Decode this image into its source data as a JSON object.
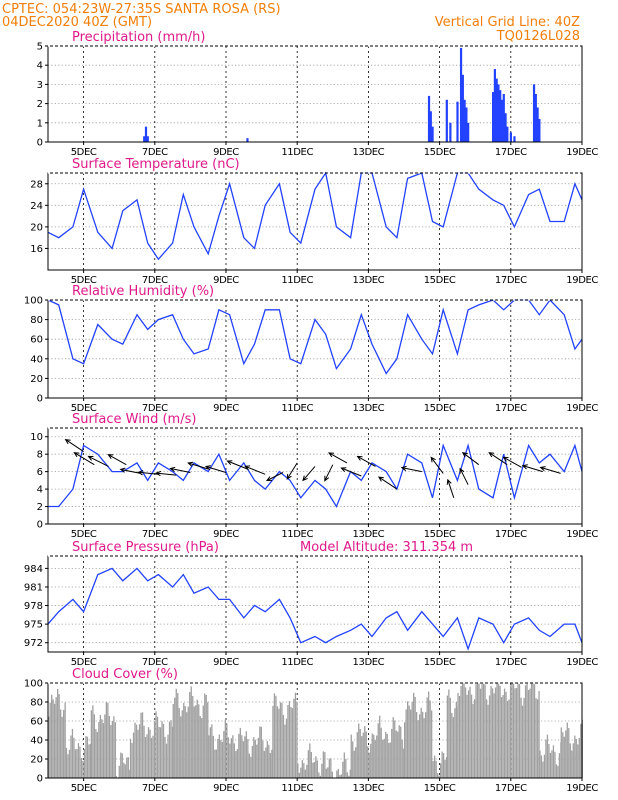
{
  "header": {
    "left_line1": "CPTEC:   054:23W-27:35S   SANTA ROSA (RS)",
    "left_line2": "04DEC2020 40Z (GMT)",
    "right_line1": "Vertical Grid Line: 40Z",
    "right_line2": "TQ0126L028"
  },
  "x_tick_labels": [
    "5DEC",
    "7DEC",
    "9DEC",
    "11DEC",
    "13DEC",
    "15DEC",
    "17DEC",
    "19DEC"
  ],
  "colors": {
    "header": "#f07f0a",
    "panel_title": "#e0198a",
    "line": "#2242ff",
    "cloud": "#a0a0a0"
  },
  "panels": {
    "precip": {
      "title": "Precipitation (mm/h)",
      "yticks": [
        "0",
        "1",
        "2",
        "3",
        "4",
        "5"
      ]
    },
    "temp": {
      "title": "Surface Temperature (nC)",
      "yticks": [
        "16",
        "20",
        "24",
        "28"
      ]
    },
    "rh": {
      "title": "Relative Humidity (%)",
      "yticks": [
        "0",
        "20",
        "40",
        "60",
        "80",
        "100"
      ]
    },
    "wind": {
      "title": "Surface Wind (m/s)",
      "yticks": [
        "0",
        "2",
        "4",
        "6",
        "8",
        "10"
      ]
    },
    "pres": {
      "title": "Surface Pressure (hPa)",
      "subtitle": "Model Altitude: 311.354 m",
      "yticks": [
        "972",
        "975",
        "978",
        "981",
        "984"
      ]
    },
    "cloud": {
      "title": "Cloud Cover (%)",
      "yticks": [
        "0",
        "20",
        "40",
        "60",
        "80",
        "100"
      ]
    }
  },
  "chart_data": [
    {
      "type": "bar",
      "title": "Precipitation (mm/h)",
      "ylim": [
        0,
        5
      ],
      "x_range_days": [
        4.0,
        19.0
      ],
      "x": [
        6.7,
        6.75,
        6.8,
        9.6,
        14.7,
        14.75,
        14.8,
        15.2,
        15.3,
        15.5,
        15.6,
        15.65,
        15.7,
        15.75,
        15.8,
        16.5,
        16.55,
        16.6,
        16.65,
        16.7,
        16.75,
        16.8,
        16.85,
        16.9,
        17.0,
        17.1,
        17.65,
        17.7,
        17.75,
        17.8
      ],
      "values": [
        0.3,
        0.8,
        0.3,
        0.2,
        2.4,
        1.6,
        0.8,
        2.2,
        1.0,
        2.1,
        4.9,
        3.5,
        2.2,
        1.8,
        1.0,
        2.6,
        3.8,
        3.3,
        3.0,
        2.7,
        2.2,
        2.5,
        1.5,
        0.8,
        0.5,
        0.3,
        3.0,
        2.5,
        1.8,
        1.2
      ]
    },
    {
      "type": "line",
      "title": "Surface Temperature (nC)",
      "ylim": [
        12,
        30
      ],
      "x": [
        4.0,
        4.3,
        4.7,
        5.0,
        5.4,
        5.8,
        6.1,
        6.5,
        6.8,
        7.1,
        7.5,
        7.8,
        8.1,
        8.5,
        8.8,
        9.1,
        9.5,
        9.8,
        10.1,
        10.5,
        10.8,
        11.1,
        11.5,
        11.8,
        12.1,
        12.5,
        12.8,
        13.1,
        13.5,
        13.8,
        14.1,
        14.5,
        14.8,
        15.1,
        15.5,
        15.8,
        16.1,
        16.5,
        16.8,
        17.1,
        17.5,
        17.8,
        18.1,
        18.5,
        18.8,
        19.0
      ],
      "values": [
        19,
        18,
        20,
        27,
        19,
        16,
        23,
        25,
        17,
        14,
        17,
        26,
        20,
        15,
        22,
        28,
        18,
        16,
        24,
        28,
        19,
        17,
        27,
        30,
        20,
        18,
        30,
        30,
        20,
        18,
        29,
        30,
        21,
        20,
        30,
        30,
        27,
        25,
        24,
        20,
        26,
        27,
        21,
        21,
        28,
        25
      ]
    },
    {
      "type": "line",
      "title": "Relative Humidity (%)",
      "ylim": [
        0,
        100
      ],
      "x": [
        4.0,
        4.3,
        4.7,
        5.0,
        5.4,
        5.8,
        6.1,
        6.5,
        6.8,
        7.1,
        7.5,
        7.8,
        8.1,
        8.5,
        8.8,
        9.1,
        9.5,
        9.8,
        10.1,
        10.5,
        10.8,
        11.1,
        11.5,
        11.8,
        12.1,
        12.5,
        12.8,
        13.1,
        13.5,
        13.8,
        14.1,
        14.5,
        14.8,
        15.1,
        15.5,
        15.8,
        16.1,
        16.5,
        16.8,
        17.1,
        17.5,
        17.8,
        18.1,
        18.5,
        18.8,
        19.0
      ],
      "values": [
        100,
        95,
        40,
        35,
        75,
        60,
        55,
        85,
        70,
        80,
        85,
        60,
        45,
        50,
        90,
        85,
        35,
        55,
        90,
        90,
        40,
        35,
        80,
        65,
        30,
        50,
        85,
        55,
        25,
        40,
        85,
        60,
        45,
        90,
        45,
        90,
        95,
        100,
        90,
        100,
        100,
        85,
        100,
        85,
        50,
        60
      ]
    },
    {
      "type": "line",
      "title": "Surface Wind (m/s)",
      "ylim": [
        0,
        11
      ],
      "x": [
        4.0,
        4.3,
        4.7,
        5.0,
        5.4,
        5.8,
        6.1,
        6.5,
        6.8,
        7.1,
        7.5,
        7.8,
        8.1,
        8.5,
        8.8,
        9.1,
        9.5,
        9.8,
        10.1,
        10.5,
        10.8,
        11.1,
        11.5,
        11.8,
        12.1,
        12.5,
        12.8,
        13.1,
        13.5,
        13.8,
        14.1,
        14.5,
        14.8,
        15.1,
        15.5,
        15.8,
        16.1,
        16.5,
        16.8,
        17.1,
        17.5,
        17.8,
        18.1,
        18.5,
        18.8,
        19.0
      ],
      "values": [
        2,
        2,
        4,
        9,
        8,
        6,
        6,
        7,
        5,
        7,
        6,
        5,
        7,
        6,
        8,
        5,
        7,
        5,
        4,
        6,
        5,
        3,
        5,
        4,
        2,
        6,
        5,
        7,
        6,
        4,
        8,
        7,
        3,
        9,
        5,
        9,
        4,
        3,
        8,
        3,
        9,
        7,
        8,
        6,
        9,
        6
      ]
    },
    {
      "type": "line",
      "title": "Surface Pressure (hPa)",
      "ylim": [
        970.5,
        986
      ],
      "x": [
        4.0,
        4.3,
        4.7,
        5.0,
        5.4,
        5.8,
        6.1,
        6.5,
        6.8,
        7.1,
        7.5,
        7.8,
        8.1,
        8.5,
        8.8,
        9.1,
        9.5,
        9.8,
        10.1,
        10.5,
        10.8,
        11.1,
        11.5,
        11.8,
        12.1,
        12.5,
        12.8,
        13.1,
        13.5,
        13.8,
        14.1,
        14.5,
        14.8,
        15.1,
        15.5,
        15.8,
        16.1,
        16.5,
        16.8,
        17.1,
        17.5,
        17.8,
        18.1,
        18.5,
        18.8,
        19.0
      ],
      "values": [
        975,
        977,
        979,
        977,
        983,
        984,
        982,
        984,
        982,
        983,
        981,
        983,
        980,
        981,
        979,
        979,
        976,
        978,
        977,
        979,
        976,
        972,
        973,
        972,
        973,
        974,
        975,
        973,
        976,
        977,
        974,
        977,
        975,
        973,
        976,
        971,
        976,
        975,
        972,
        975,
        976,
        974,
        973,
        975,
        975,
        972
      ]
    },
    {
      "type": "bar",
      "title": "Cloud Cover (%)",
      "ylim": [
        0,
        100
      ],
      "x_range_days": [
        4.0,
        19.0
      ],
      "segments": [
        {
          "start": 4.0,
          "end": 4.5,
          "level": 85
        },
        {
          "start": 4.5,
          "end": 5.2,
          "level": 40
        },
        {
          "start": 5.2,
          "end": 5.9,
          "level": 70
        },
        {
          "start": 5.9,
          "end": 6.3,
          "level": 20
        },
        {
          "start": 6.3,
          "end": 7.5,
          "level": 60
        },
        {
          "start": 7.5,
          "end": 8.5,
          "level": 85
        },
        {
          "start": 8.5,
          "end": 9.3,
          "level": 50
        },
        {
          "start": 9.3,
          "end": 10.3,
          "level": 45
        },
        {
          "start": 10.3,
          "end": 11.0,
          "level": 80
        },
        {
          "start": 11.0,
          "end": 11.8,
          "level": 25
        },
        {
          "start": 11.8,
          "end": 12.5,
          "level": 15
        },
        {
          "start": 12.5,
          "end": 13.3,
          "level": 50
        },
        {
          "start": 13.3,
          "end": 14.0,
          "level": 55
        },
        {
          "start": 14.0,
          "end": 14.8,
          "level": 80
        },
        {
          "start": 14.8,
          "end": 15.2,
          "level": 25
        },
        {
          "start": 15.2,
          "end": 15.5,
          "level": 85
        },
        {
          "start": 15.5,
          "end": 17.8,
          "level": 100
        },
        {
          "start": 17.8,
          "end": 18.4,
          "level": 35
        },
        {
          "start": 18.4,
          "end": 19.0,
          "level": 50
        }
      ]
    }
  ]
}
